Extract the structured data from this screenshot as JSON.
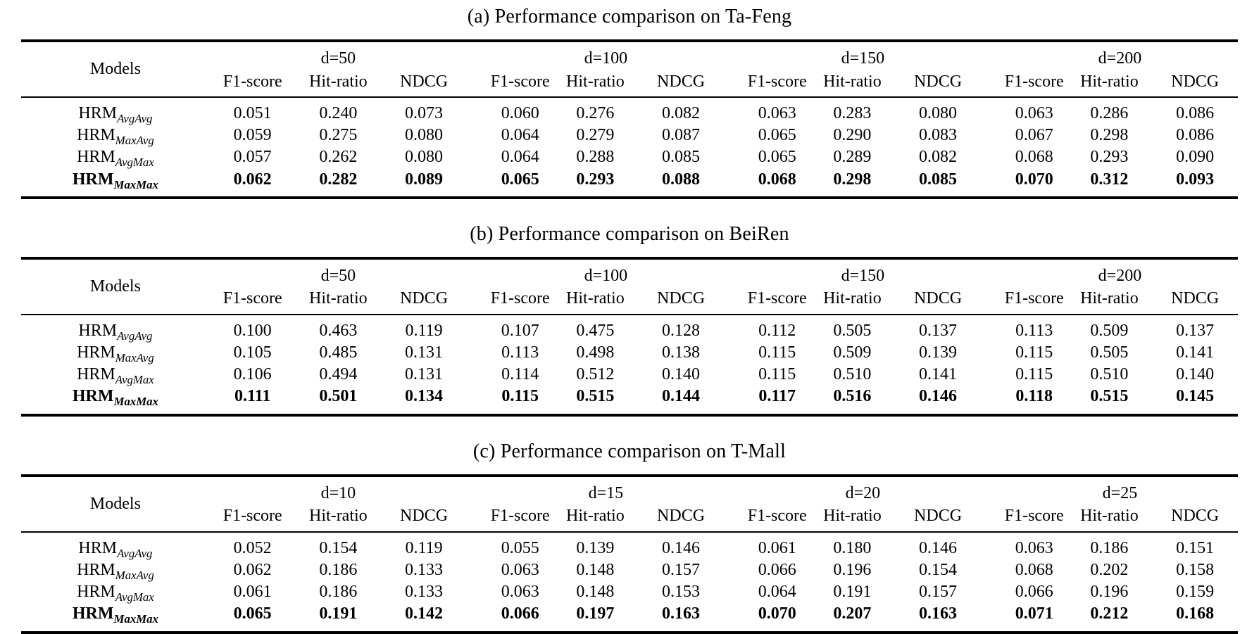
{
  "page": {
    "background_color": "#ffffff",
    "text_color": "#000000"
  },
  "tables": [
    {
      "id": "a",
      "caption": "(a) Performance comparison on Ta-Feng",
      "models_header": "Models",
      "groups": [
        "d=50",
        "d=100",
        "d=150",
        "d=200"
      ],
      "metrics": [
        "F1-score",
        "Hit-ratio",
        "NDCG"
      ],
      "rows": [
        {
          "model_base": "HRM",
          "model_sub": "AvgAvg",
          "bold": false,
          "values": [
            "0.051",
            "0.240",
            "0.073",
            "0.060",
            "0.276",
            "0.082",
            "0.063",
            "0.283",
            "0.080",
            "0.063",
            "0.286",
            "0.086"
          ]
        },
        {
          "model_base": "HRM",
          "model_sub": "MaxAvg",
          "bold": false,
          "values": [
            "0.059",
            "0.275",
            "0.080",
            "0.064",
            "0.279",
            "0.087",
            "0.065",
            "0.290",
            "0.083",
            "0.067",
            "0.298",
            "0.086"
          ]
        },
        {
          "model_base": "HRM",
          "model_sub": "AvgMax",
          "bold": false,
          "values": [
            "0.057",
            "0.262",
            "0.080",
            "0.064",
            "0.288",
            "0.085",
            "0.065",
            "0.289",
            "0.082",
            "0.068",
            "0.293",
            "0.090"
          ]
        },
        {
          "model_base": "HRM",
          "model_sub": "MaxMax",
          "bold": true,
          "values": [
            "0.062",
            "0.282",
            "0.089",
            "0.065",
            "0.293",
            "0.088",
            "0.068",
            "0.298",
            "0.085",
            "0.070",
            "0.312",
            "0.093"
          ]
        }
      ]
    },
    {
      "id": "b",
      "caption": "(b) Performance comparison on BeiRen",
      "models_header": "Models",
      "groups": [
        "d=50",
        "d=100",
        "d=150",
        "d=200"
      ],
      "metrics": [
        "F1-score",
        "Hit-ratio",
        "NDCG"
      ],
      "rows": [
        {
          "model_base": "HRM",
          "model_sub": "AvgAvg",
          "bold": false,
          "values": [
            "0.100",
            "0.463",
            "0.119",
            "0.107",
            "0.475",
            "0.128",
            "0.112",
            "0.505",
            "0.137",
            "0.113",
            "0.509",
            "0.137"
          ]
        },
        {
          "model_base": "HRM",
          "model_sub": "MaxAvg",
          "bold": false,
          "values": [
            "0.105",
            "0.485",
            "0.131",
            "0.113",
            "0.498",
            "0.138",
            "0.115",
            "0.509",
            "0.139",
            "0.115",
            "0.505",
            "0.141"
          ]
        },
        {
          "model_base": "HRM",
          "model_sub": "AvgMax",
          "bold": false,
          "values": [
            "0.106",
            "0.494",
            "0.131",
            "0.114",
            "0.512",
            "0.140",
            "0.115",
            "0.510",
            "0.141",
            "0.115",
            "0.510",
            "0.140"
          ]
        },
        {
          "model_base": "HRM",
          "model_sub": "MaxMax",
          "bold": true,
          "values": [
            "0.111",
            "0.501",
            "0.134",
            "0.115",
            "0.515",
            "0.144",
            "0.117",
            "0.516",
            "0.146",
            "0.118",
            "0.515",
            "0.145"
          ]
        }
      ]
    },
    {
      "id": "c",
      "caption": "(c) Performance comparison on T-Mall",
      "models_header": "Models",
      "groups": [
        "d=10",
        "d=15",
        "d=20",
        "d=25"
      ],
      "metrics": [
        "F1-score",
        "Hit-ratio",
        "NDCG"
      ],
      "rows": [
        {
          "model_base": "HRM",
          "model_sub": "AvgAvg",
          "bold": false,
          "values": [
            "0.052",
            "0.154",
            "0.119",
            "0.055",
            "0.139",
            "0.146",
            "0.061",
            "0.180",
            "0.146",
            "0.063",
            "0.186",
            "0.151"
          ]
        },
        {
          "model_base": "HRM",
          "model_sub": "MaxAvg",
          "bold": false,
          "values": [
            "0.062",
            "0.186",
            "0.133",
            "0.063",
            "0.148",
            "0.157",
            "0.066",
            "0.196",
            "0.154",
            "0.068",
            "0.202",
            "0.158"
          ]
        },
        {
          "model_base": "HRM",
          "model_sub": "AvgMax",
          "bold": false,
          "values": [
            "0.061",
            "0.186",
            "0.133",
            "0.063",
            "0.148",
            "0.153",
            "0.064",
            "0.191",
            "0.157",
            "0.066",
            "0.196",
            "0.159"
          ]
        },
        {
          "model_base": "HRM",
          "model_sub": "MaxMax",
          "bold": true,
          "values": [
            "0.065",
            "0.191",
            "0.142",
            "0.066",
            "0.197",
            "0.163",
            "0.070",
            "0.207",
            "0.163",
            "0.071",
            "0.212",
            "0.168"
          ]
        }
      ]
    }
  ]
}
